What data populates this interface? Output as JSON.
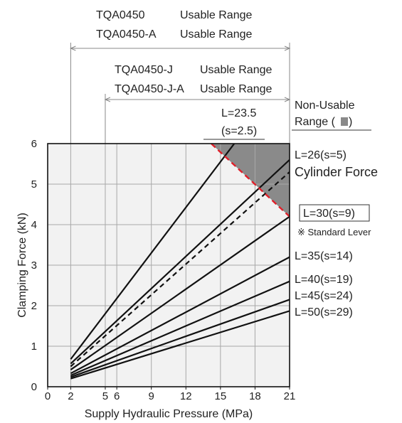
{
  "chart_data": {
    "type": "line",
    "xlabel": "Supply Hydraulic Pressure (MPa)",
    "ylabel": "Clamping Force (kN)",
    "xlim": [
      0,
      21
    ],
    "ylim": [
      0,
      6
    ],
    "x_ticks": [
      "0",
      "2",
      "5",
      "6",
      "9",
      "12",
      "15",
      "18",
      "21"
    ],
    "y_ticks": [
      "0",
      "1",
      "2",
      "3",
      "4",
      "5",
      "6"
    ],
    "grid": true,
    "ranges": [
      {
        "lines": [
          "TQA0450",
          "TQA0450-A"
        ],
        "label": "Usable Range",
        "from": 2,
        "to": 21
      },
      {
        "lines": [
          "TQA0450-J",
          "TQA0450-J-A"
        ],
        "label": "Usable Range",
        "from": 5,
        "to": 21
      }
    ],
    "non_usable": {
      "label_line1": "Non-Usable",
      "label_line2": "Range (",
      "label_line3": " )",
      "color": "#8a8a8a",
      "boundary_color": "#e0202a",
      "boundary": [
        [
          14.2,
          6.0
        ],
        [
          21,
          4.2
        ]
      ]
    },
    "series": [
      {
        "name": "L=23.5",
        "name2": "(s=2.5)",
        "x": [
          2,
          16.2
        ],
        "y": [
          0.68,
          6.0
        ],
        "dashed": false
      },
      {
        "name": "L=26(s=5)",
        "x": [
          2,
          21
        ],
        "y": [
          0.57,
          5.6
        ],
        "dashed": false
      },
      {
        "name": "Cylinder Force",
        "x": [
          2,
          21
        ],
        "y": [
          0.5,
          5.3
        ],
        "dashed": true
      },
      {
        "name": "L=30(s=9)",
        "note": "※ Standard Lever",
        "boxed": true,
        "x": [
          2,
          21
        ],
        "y": [
          0.42,
          4.2
        ],
        "dashed": false
      },
      {
        "name": "L=35(s=14)",
        "x": [
          2,
          21
        ],
        "y": [
          0.33,
          3.2
        ],
        "dashed": false
      },
      {
        "name": "L=40(s=19)",
        "x": [
          2,
          21
        ],
        "y": [
          0.28,
          2.6
        ],
        "dashed": false
      },
      {
        "name": "L=45(s=24)",
        "x": [
          2,
          21
        ],
        "y": [
          0.24,
          2.15
        ],
        "dashed": false
      },
      {
        "name": "L=50(s=29)",
        "x": [
          2,
          21
        ],
        "y": [
          0.2,
          1.87
        ],
        "dashed": false
      }
    ]
  }
}
